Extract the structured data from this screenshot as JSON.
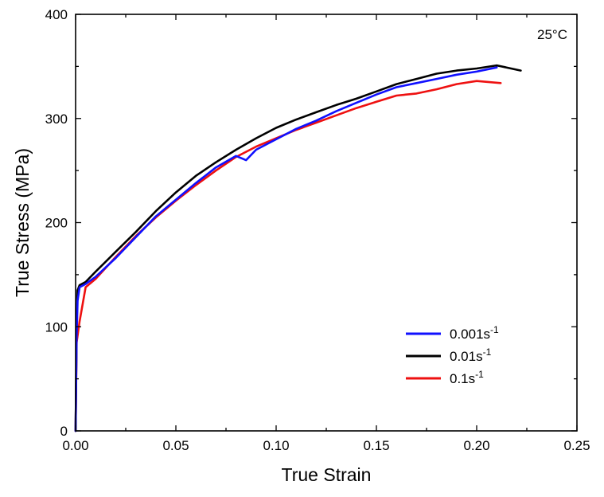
{
  "chart_data": {
    "type": "line",
    "title": "",
    "xlabel": "True Strain",
    "ylabel": "True Stress (MPa)",
    "xlim": [
      0.0,
      0.25
    ],
    "ylim": [
      0,
      400
    ],
    "xticks": [
      "0.00",
      "0.05",
      "0.10",
      "0.15",
      "0.20",
      "0.25"
    ],
    "yticks": [
      "0",
      "100",
      "200",
      "300",
      "400"
    ],
    "annotation": "25°C",
    "legend_position": "bottom-right",
    "grid": false,
    "series": [
      {
        "name": "0.001s",
        "name_superscript": "-1",
        "color": "#1010ff",
        "points": [
          [
            0.0,
            0
          ],
          [
            0.0005,
            90
          ],
          [
            0.001,
            125
          ],
          [
            0.002,
            138
          ],
          [
            0.005,
            141
          ],
          [
            0.01,
            148
          ],
          [
            0.02,
            166
          ],
          [
            0.03,
            186
          ],
          [
            0.04,
            206
          ],
          [
            0.05,
            222
          ],
          [
            0.06,
            238
          ],
          [
            0.07,
            253
          ],
          [
            0.08,
            264
          ],
          [
            0.085,
            260
          ],
          [
            0.09,
            270
          ],
          [
            0.1,
            280
          ],
          [
            0.11,
            290
          ],
          [
            0.12,
            298
          ],
          [
            0.13,
            307
          ],
          [
            0.14,
            315
          ],
          [
            0.15,
            323
          ],
          [
            0.16,
            330
          ],
          [
            0.17,
            334
          ],
          [
            0.18,
            338
          ],
          [
            0.19,
            342
          ],
          [
            0.2,
            345
          ],
          [
            0.21,
            349
          ]
        ]
      },
      {
        "name": "0.01s",
        "name_superscript": "-1",
        "color": "#000000",
        "points": [
          [
            0.0,
            0
          ],
          [
            0.0005,
            100
          ],
          [
            0.001,
            135
          ],
          [
            0.002,
            140
          ],
          [
            0.005,
            143
          ],
          [
            0.01,
            153
          ],
          [
            0.02,
            172
          ],
          [
            0.03,
            191
          ],
          [
            0.04,
            211
          ],
          [
            0.05,
            229
          ],
          [
            0.06,
            245
          ],
          [
            0.07,
            258
          ],
          [
            0.08,
            270
          ],
          [
            0.09,
            281
          ],
          [
            0.1,
            291
          ],
          [
            0.11,
            299
          ],
          [
            0.12,
            306
          ],
          [
            0.13,
            313
          ],
          [
            0.14,
            319
          ],
          [
            0.15,
            326
          ],
          [
            0.16,
            333
          ],
          [
            0.17,
            338
          ],
          [
            0.18,
            343
          ],
          [
            0.19,
            346
          ],
          [
            0.2,
            348
          ],
          [
            0.21,
            351
          ],
          [
            0.222,
            346
          ]
        ]
      },
      {
        "name": "0.1s",
        "name_superscript": "-1",
        "color": "#ee1010",
        "points": [
          [
            0.0,
            0
          ],
          [
            0.0005,
            85
          ],
          [
            0.002,
            105
          ],
          [
            0.005,
            138
          ],
          [
            0.01,
            146
          ],
          [
            0.02,
            167
          ],
          [
            0.03,
            187
          ],
          [
            0.04,
            205
          ],
          [
            0.05,
            221
          ],
          [
            0.06,
            236
          ],
          [
            0.07,
            250
          ],
          [
            0.08,
            263
          ],
          [
            0.09,
            273
          ],
          [
            0.1,
            281
          ],
          [
            0.11,
            289
          ],
          [
            0.12,
            296
          ],
          [
            0.13,
            303
          ],
          [
            0.14,
            310
          ],
          [
            0.15,
            316
          ],
          [
            0.16,
            322
          ],
          [
            0.17,
            324
          ],
          [
            0.18,
            328
          ],
          [
            0.19,
            333
          ],
          [
            0.2,
            336
          ],
          [
            0.212,
            334
          ]
        ]
      }
    ]
  }
}
